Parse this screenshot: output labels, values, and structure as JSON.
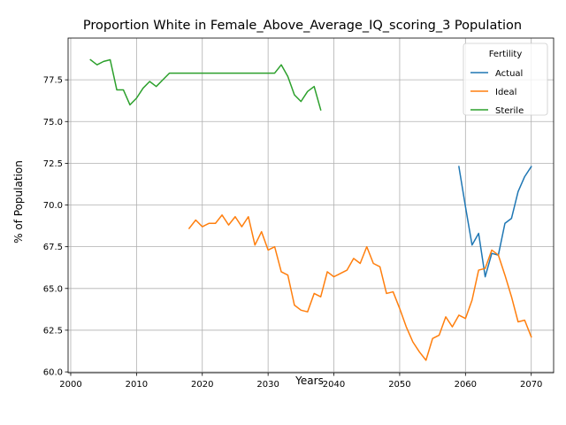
{
  "chart_data": {
    "type": "line",
    "title": "Proportion White in Female_Above_Average_IQ_scoring_3 Population",
    "xlabel": "Years",
    "ylabel": "% of Population",
    "xlim": [
      1999.6,
      2073.4
    ],
    "ylim": [
      59.95,
      80.0
    ],
    "xticks": [
      2000,
      2010,
      2020,
      2030,
      2040,
      2050,
      2060,
      2070
    ],
    "xtick_labels": [
      "2000",
      "2010",
      "2020",
      "2030",
      "2040",
      "2050",
      "2060",
      "2070"
    ],
    "yticks": [
      60.0,
      62.5,
      65.0,
      67.5,
      70.0,
      72.5,
      75.0,
      77.5
    ],
    "ytick_labels": [
      "60.0",
      "62.5",
      "65.0",
      "67.5",
      "70.0",
      "72.5",
      "75.0",
      "77.5"
    ],
    "grid": true,
    "legend": {
      "title": "Fertility",
      "placement": "top-right"
    },
    "series": [
      {
        "name": "Actual",
        "color": "#1f77b4",
        "x": [
          2059,
          2060,
          2061,
          2062,
          2063,
          2064,
          2065,
          2066,
          2067,
          2068,
          2069,
          2070
        ],
        "y": [
          72.3,
          69.9,
          67.6,
          68.3,
          65.7,
          67.1,
          67.0,
          68.9,
          69.2,
          70.8,
          71.7,
          72.3
        ]
      },
      {
        "name": "Ideal",
        "color": "#ff7f0e",
        "x": [
          2018,
          2019,
          2020,
          2021,
          2022,
          2023,
          2024,
          2025,
          2026,
          2027,
          2028,
          2029,
          2030,
          2031,
          2032,
          2033,
          2034,
          2035,
          2036,
          2037,
          2038,
          2039,
          2040,
          2041,
          2042,
          2043,
          2044,
          2045,
          2046,
          2047,
          2048,
          2049,
          2050,
          2051,
          2052,
          2053,
          2054,
          2055,
          2056,
          2057,
          2058,
          2059,
          2060,
          2061,
          2062,
          2063,
          2064,
          2065,
          2066,
          2067,
          2068,
          2069,
          2070
        ],
        "y": [
          68.6,
          69.1,
          68.7,
          68.9,
          68.9,
          69.4,
          68.8,
          69.3,
          68.7,
          69.3,
          67.6,
          68.4,
          67.3,
          67.5,
          66.0,
          65.8,
          64.0,
          63.7,
          63.6,
          64.7,
          64.5,
          66.0,
          65.7,
          65.9,
          66.1,
          66.8,
          66.5,
          67.5,
          66.5,
          66.3,
          64.7,
          64.8,
          63.8,
          62.7,
          61.8,
          61.2,
          60.7,
          62.0,
          62.2,
          63.3,
          62.7,
          63.4,
          63.2,
          64.3,
          66.1,
          66.2,
          67.3,
          67.0,
          65.8,
          64.5,
          63.0,
          63.1,
          62.1
        ]
      },
      {
        "name": "Sterile",
        "color": "#2ca02c",
        "x": [
          2003,
          2004,
          2005,
          2006,
          2007,
          2008,
          2009,
          2010,
          2011,
          2012,
          2013,
          2014,
          2015,
          2016,
          2017,
          2018,
          2019,
          2020,
          2021,
          2022,
          2023,
          2024,
          2025,
          2026,
          2027,
          2028,
          2029,
          2030,
          2031,
          2032,
          2033,
          2034,
          2035,
          2036,
          2037,
          2038
        ],
        "y": [
          78.7,
          78.4,
          78.6,
          78.7,
          76.9,
          76.9,
          76.0,
          76.4,
          77.0,
          77.4,
          77.1,
          77.5,
          77.9,
          77.9,
          77.9,
          77.9,
          77.9,
          77.9,
          77.9,
          77.9,
          77.9,
          77.9,
          77.9,
          77.9,
          77.9,
          77.9,
          77.9,
          77.9,
          77.9,
          78.4,
          77.7,
          76.6,
          76.2,
          76.8,
          77.1,
          75.7
        ]
      }
    ]
  }
}
